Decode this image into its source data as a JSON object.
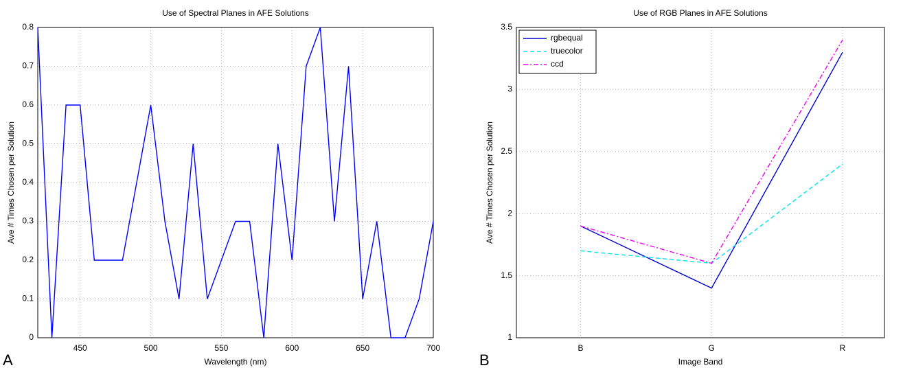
{
  "chart_data": [
    {
      "type": "line",
      "title": "Use of Spectral Planes in AFE Solutions",
      "panel_label": "A",
      "x_label": "Wavelength (nm)",
      "y_label": "Ave # Times Chosen per Solution",
      "x": [
        420,
        430,
        440,
        450,
        460,
        470,
        480,
        490,
        500,
        510,
        520,
        530,
        540,
        550,
        560,
        570,
        580,
        590,
        600,
        610,
        620,
        630,
        640,
        650,
        660,
        670,
        680,
        690,
        700
      ],
      "series": [
        {
          "color": "#0000ff",
          "style": "solid",
          "values": [
            0.8,
            0,
            0.6,
            0.6,
            0.2,
            0.2,
            0.2,
            0.4,
            0.6,
            0.3,
            0.1,
            0.5,
            0.1,
            0.2,
            0.3,
            0.3,
            0,
            0.5,
            0.2,
            0.7,
            0.8,
            0.3,
            0.7,
            0.1,
            0.3,
            0,
            0,
            0.1,
            0.3
          ]
        }
      ],
      "xlim": [
        420,
        700
      ],
      "xticks": [
        450,
        500,
        550,
        600,
        650,
        700
      ],
      "ylim": [
        0,
        0.8
      ],
      "yticks": [
        0,
        0.1,
        0.2,
        0.3,
        0.4,
        0.5,
        0.6,
        0.7,
        0.8
      ],
      "grid": true
    },
    {
      "type": "line",
      "title": "Use of RGB Planes in AFE Solutions",
      "panel_label": "B",
      "x_label": "Image Band",
      "y_label": "Ave # Times Chosen per Solution",
      "categories": [
        "B",
        "G",
        "R"
      ],
      "series": [
        {
          "name": "rgbequal",
          "color": "#0000cc",
          "style": "solid",
          "values": [
            1.9,
            1.4,
            3.3
          ]
        },
        {
          "name": "truecolor",
          "color": "#00e5ee",
          "style": "dashed",
          "values": [
            1.7,
            1.6,
            2.4
          ]
        },
        {
          "name": "ccd",
          "color": "#ee00ee",
          "style": "dashdot",
          "values": [
            1.9,
            1.6,
            3.4
          ]
        }
      ],
      "ylim": [
        1,
        3.5
      ],
      "yticks": [
        1,
        1.5,
        2,
        2.5,
        3,
        3.5
      ],
      "grid": true,
      "legend": "top-left"
    }
  ]
}
